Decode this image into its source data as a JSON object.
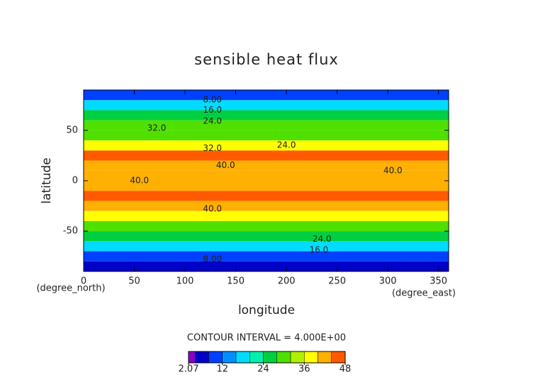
{
  "chart_data": {
    "type": "contour",
    "title": "sensible heat flux",
    "xlabel": "longitude",
    "ylabel": "latitude",
    "xunit": "(degree_east)",
    "yunit": "(degree_north)",
    "xlim": [
      0,
      360
    ],
    "ylim": [
      -90,
      90
    ],
    "xticks": [
      0,
      50,
      100,
      150,
      200,
      250,
      300,
      350
    ],
    "yticks": [
      -50,
      0,
      50
    ],
    "lat_edges": [
      -90,
      -80,
      -70,
      -60,
      -50,
      -40,
      -30,
      -20,
      -10,
      0,
      10,
      20,
      30,
      40,
      50,
      60,
      70,
      80,
      90
    ],
    "values": [
      4,
      10,
      18,
      24,
      30,
      36,
      42,
      44,
      42,
      42,
      42,
      44,
      38,
      30,
      30,
      24,
      16,
      8
    ],
    "levels": [
      4,
      8,
      12,
      16,
      20,
      24,
      28,
      32,
      36,
      40,
      44
    ],
    "colors": [
      "#8a00c8",
      "#0000c8",
      "#0040ff",
      "#0090ff",
      "#00dcff",
      "#00f0b0",
      "#00d040",
      "#50e000",
      "#b0f000",
      "#ffff00",
      "#ffb000",
      "#ff5a00"
    ],
    "clim": [
      2.07,
      48
    ],
    "cticks": [
      {
        "value": 2.07,
        "label": "2.07"
      },
      12,
      24,
      36,
      48
    ],
    "contour_interval": "CONTOUR INTERVAL = 4.000E+00",
    "contour_labels": [
      {
        "text": "8.00",
        "x": 127,
        "y": 80
      },
      {
        "text": "16.0",
        "x": 127,
        "y": 70
      },
      {
        "text": "24.0",
        "x": 127,
        "y": 59
      },
      {
        "text": "32.0",
        "x": 72,
        "y": 52
      },
      {
        "text": "24.0",
        "x": 200,
        "y": 35
      },
      {
        "text": "32.0",
        "x": 127,
        "y": 32
      },
      {
        "text": "40.0",
        "x": 140,
        "y": 15
      },
      {
        "text": "40.0",
        "x": 55,
        "y": 0
      },
      {
        "text": "40.0",
        "x": 305,
        "y": 10
      },
      {
        "text": "40.0",
        "x": 127,
        "y": -28
      },
      {
        "text": "24.0",
        "x": 235,
        "y": -58
      },
      {
        "text": "16.0",
        "x": 232,
        "y": -69
      },
      {
        "text": "8.00",
        "x": 127,
        "y": -78
      }
    ]
  }
}
